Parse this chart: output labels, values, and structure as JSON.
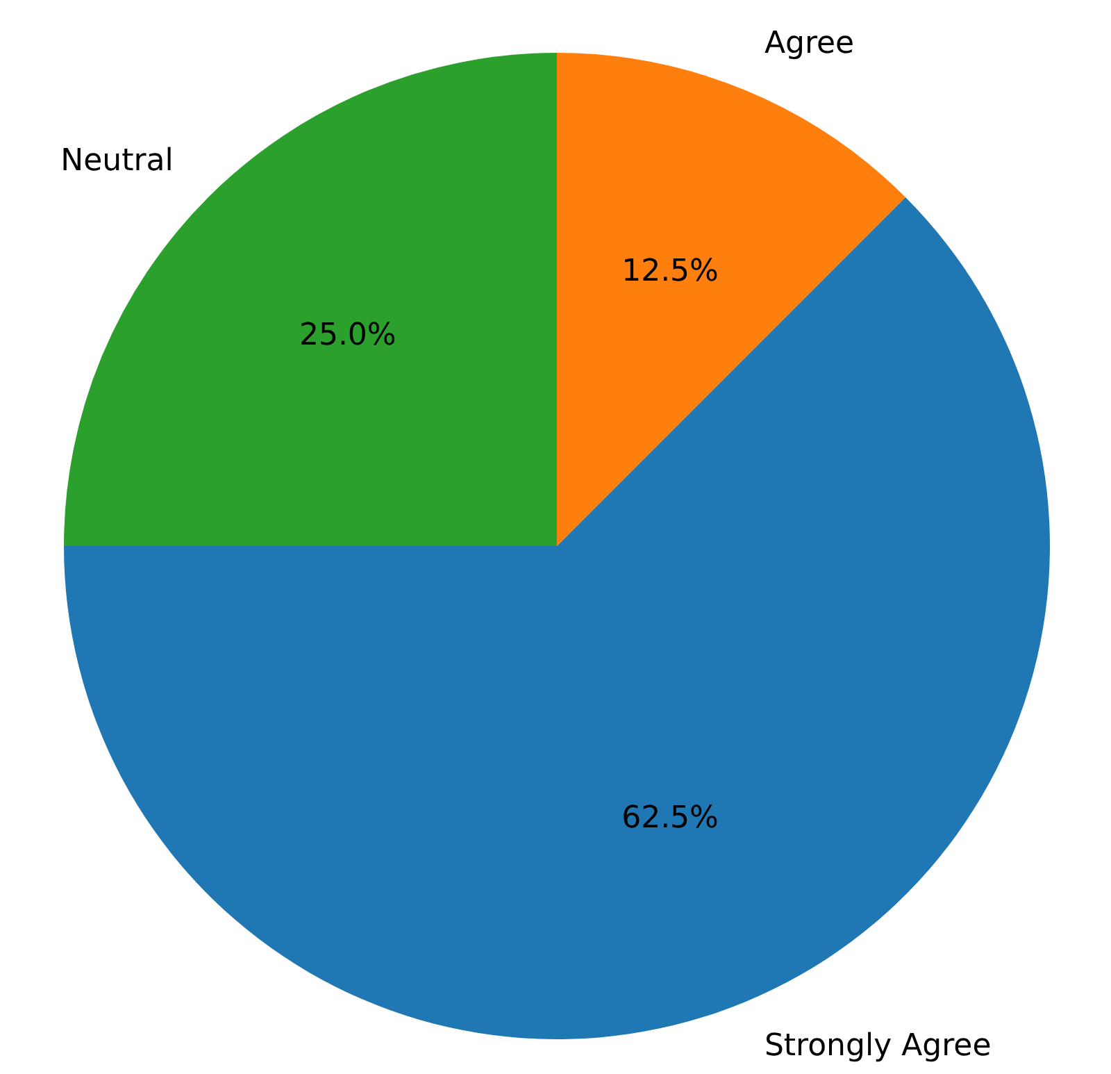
{
  "chart_data": {
    "type": "pie",
    "categories": [
      "Strongly Agree",
      "Agree",
      "Neutral"
    ],
    "values": [
      62.5,
      12.5,
      25
    ],
    "colors": [
      "#1f77b4",
      "#ff7f0e",
      "#2ca02c"
    ],
    "value_labels": [
      "62.5%",
      "12.5%",
      "25.0%"
    ],
    "legend": false
  }
}
